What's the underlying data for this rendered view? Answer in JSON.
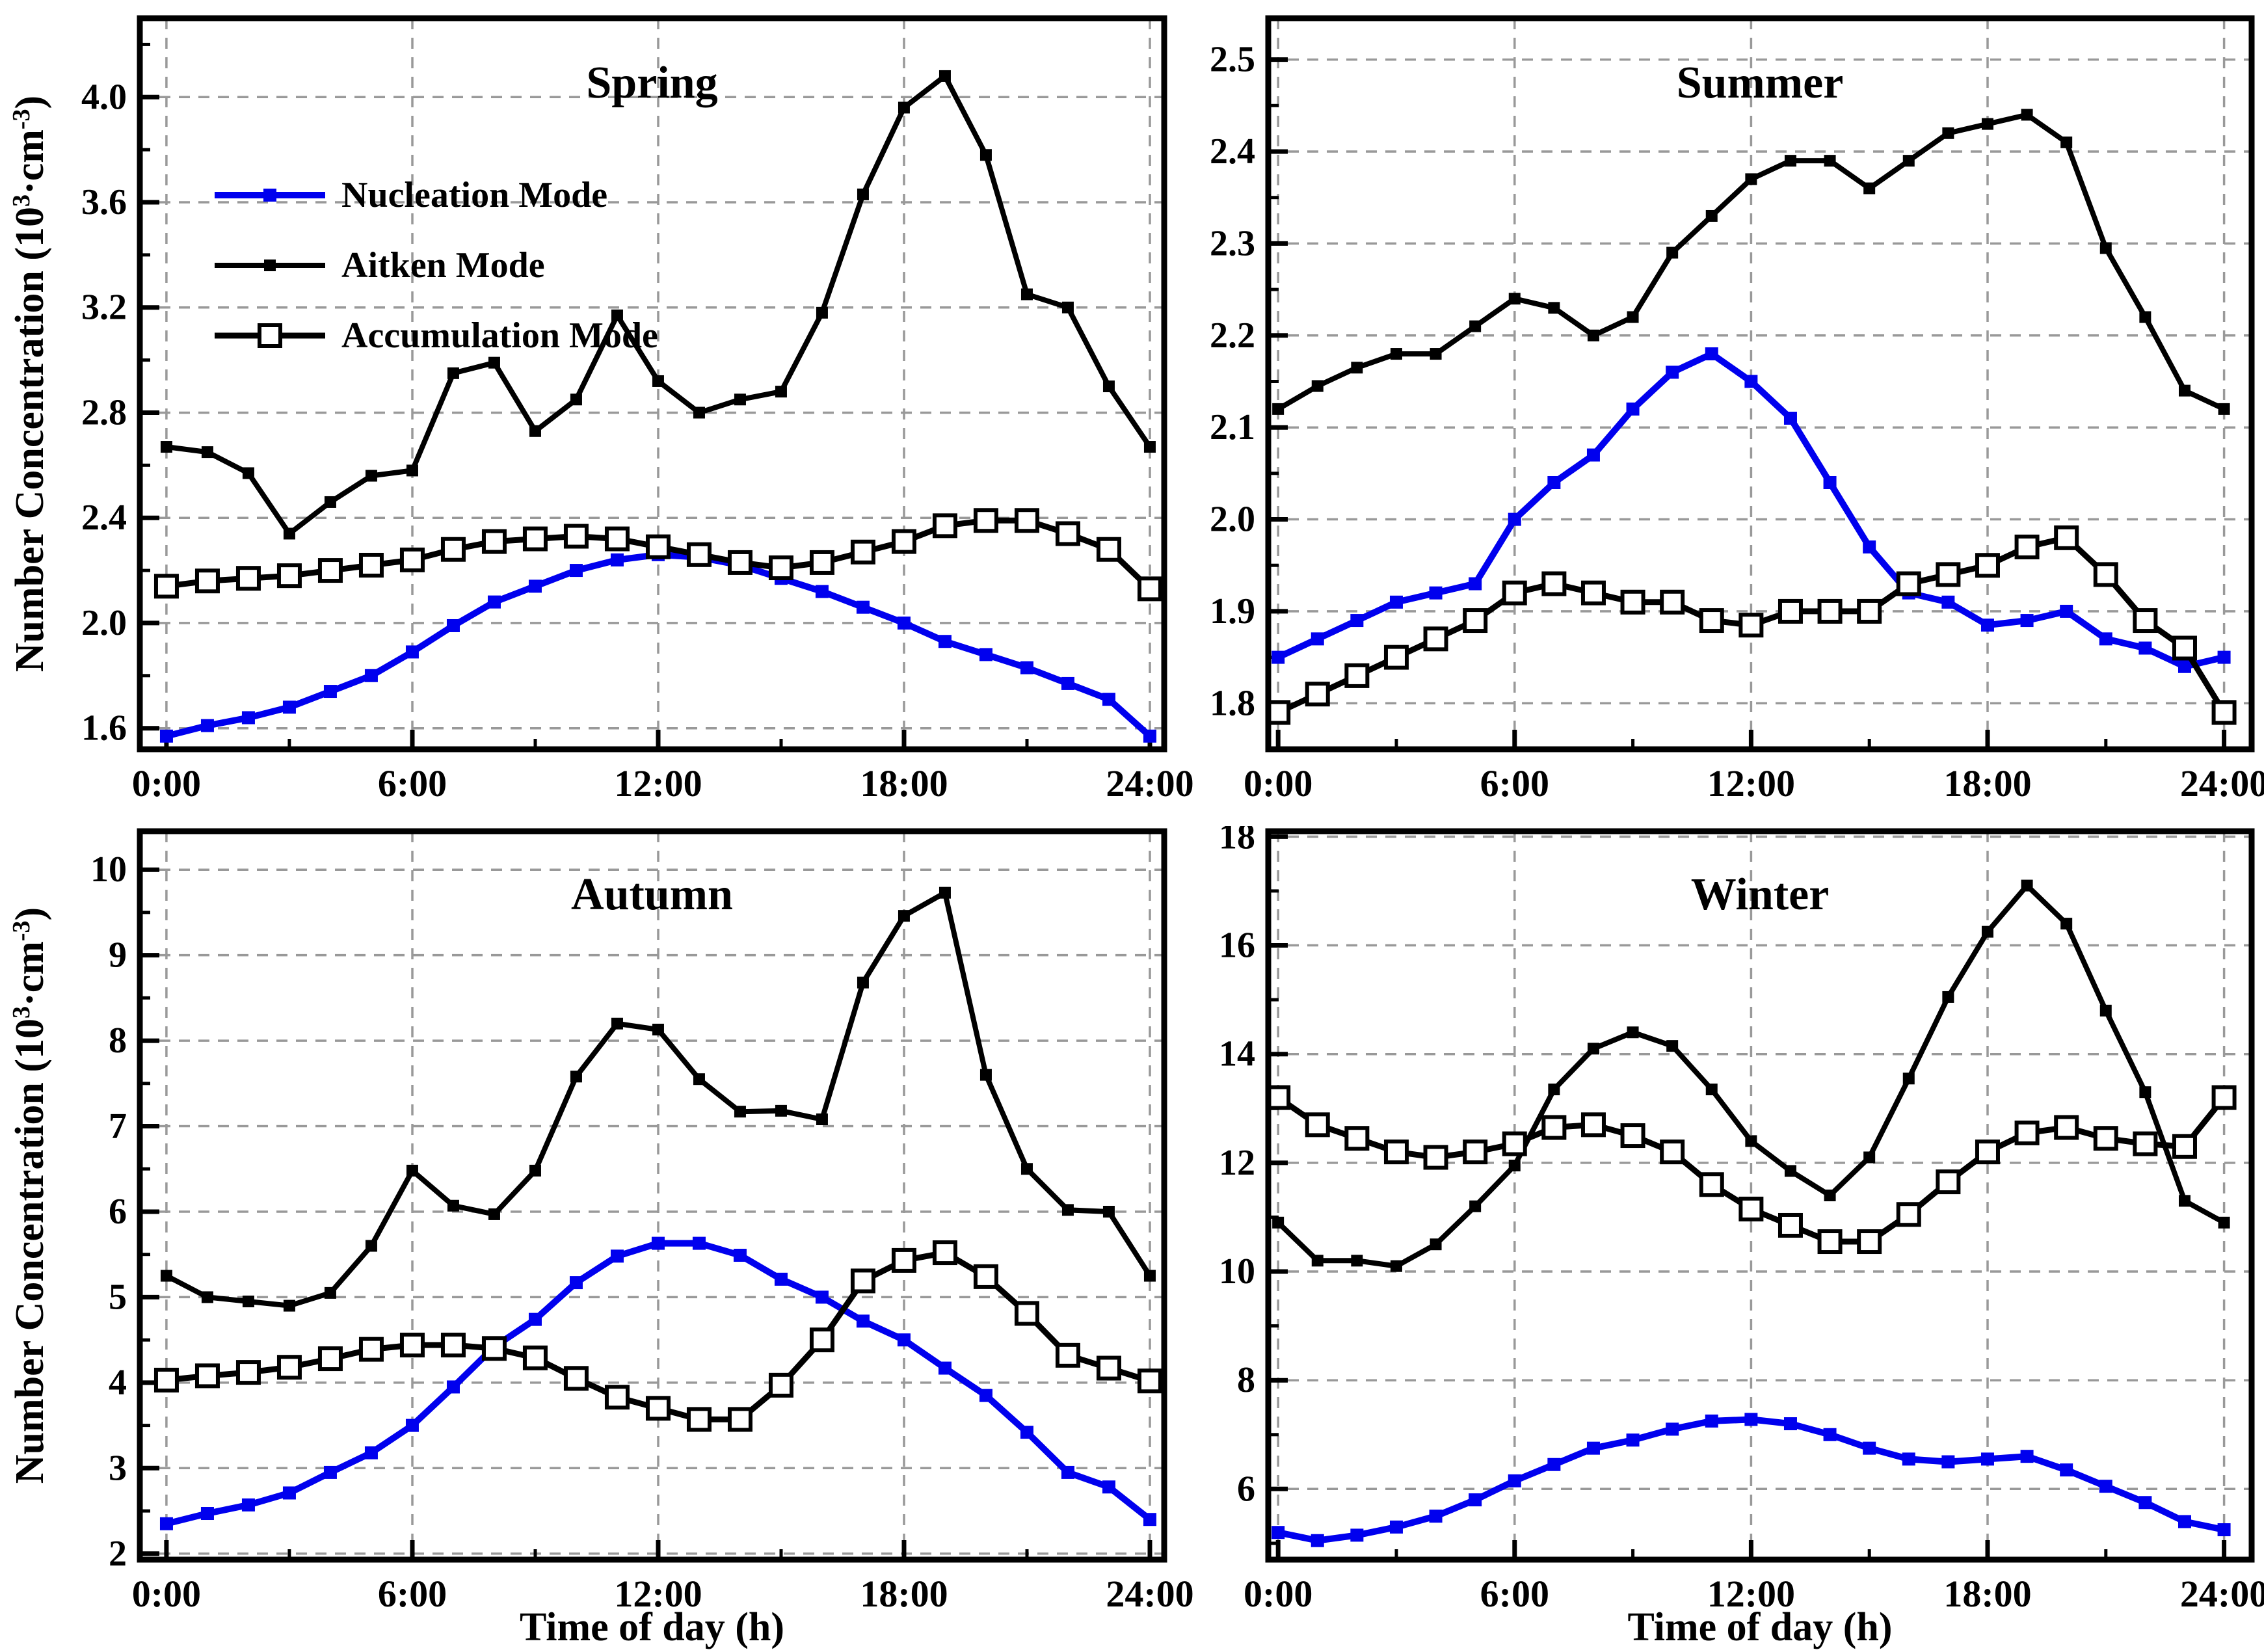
{
  "figure": {
    "y_axis_label": "Number Concentration (10³·cm⁻³)",
    "y_axis_label_parts": [
      {
        "t": "Number Concentration (10",
        "sup": false
      },
      {
        "t": "3",
        "sup": true
      },
      {
        "t": "·cm",
        "sup": false
      },
      {
        "t": "-3",
        "sup": true
      },
      {
        "t": ")",
        "sup": false
      }
    ],
    "x_axis_label": "Time of day (h)",
    "legend": [
      "Nucleation Mode",
      "Aitken Mode",
      "Accumulation Mode"
    ],
    "colors": {
      "nucleation": "#0000EE",
      "black": "#000000",
      "grid": "#999999",
      "background": "#FFFFFF"
    }
  },
  "chart_data": [
    {
      "type": "line",
      "title": "Spring",
      "position": "top-left",
      "x_hours": [
        0,
        1,
        2,
        3,
        4,
        5,
        6,
        7,
        8,
        9,
        10,
        11,
        12,
        13,
        14,
        15,
        16,
        17,
        18,
        19,
        20,
        21,
        22,
        23,
        24
      ],
      "xlim": [
        -0.65,
        24.35
      ],
      "x_ticks": [
        0,
        6,
        12,
        18,
        24
      ],
      "x_tick_labels": [
        "0:00",
        "6:00",
        "12:00",
        "18:00",
        "24:00"
      ],
      "x_minor_step": 3,
      "ylim": [
        1.52,
        4.3
      ],
      "y_ticks": [
        1.6,
        2.0,
        2.4,
        2.8,
        3.2,
        3.6,
        4.0
      ],
      "y_tick_labels": [
        "1.6",
        "2.0",
        "2.4",
        "2.8",
        "3.2",
        "3.6",
        "4.0"
      ],
      "y_minor_step": 0.2,
      "grid": true,
      "legend_visible": true,
      "show_y_axis_label": true,
      "show_x_axis_label": false,
      "series": [
        {
          "name": "Nucleation Mode",
          "color_key": "nucleation",
          "marker": "filled-square",
          "values": [
            1.57,
            1.61,
            1.64,
            1.68,
            1.74,
            1.8,
            1.89,
            1.99,
            2.08,
            2.14,
            2.2,
            2.24,
            2.26,
            2.25,
            2.22,
            2.17,
            2.12,
            2.06,
            2.0,
            1.93,
            1.88,
            1.83,
            1.77,
            1.71,
            1.57
          ]
        },
        {
          "name": "Aitken Mode",
          "color_key": "black",
          "marker": "filled-square",
          "values": [
            2.67,
            2.65,
            2.57,
            2.34,
            2.46,
            2.56,
            2.58,
            2.95,
            2.99,
            2.73,
            2.85,
            3.17,
            2.92,
            2.8,
            2.85,
            2.88,
            3.18,
            3.63,
            3.96,
            4.08,
            3.78,
            3.25,
            3.2,
            2.9,
            2.67
          ]
        },
        {
          "name": "Accumulation Mode",
          "color_key": "black",
          "marker": "open-square",
          "values": [
            2.14,
            2.16,
            2.17,
            2.18,
            2.2,
            2.22,
            2.24,
            2.28,
            2.31,
            2.32,
            2.33,
            2.32,
            2.29,
            2.26,
            2.23,
            2.21,
            2.23,
            2.27,
            2.31,
            2.37,
            2.39,
            2.39,
            2.34,
            2.28,
            2.13
          ]
        }
      ]
    },
    {
      "type": "line",
      "title": "Summer",
      "position": "top-right",
      "x_hours": [
        0,
        1,
        2,
        3,
        4,
        5,
        6,
        7,
        8,
        9,
        10,
        11,
        12,
        13,
        14,
        15,
        16,
        17,
        18,
        19,
        20,
        21,
        22,
        23,
        24
      ],
      "xlim": [
        -0.25,
        24.7
      ],
      "x_ticks": [
        0,
        6,
        12,
        18,
        24
      ],
      "x_tick_labels": [
        "0:00",
        "6:00",
        "12:00",
        "18:00",
        "24:00"
      ],
      "x_minor_step": 3,
      "ylim": [
        1.75,
        2.545
      ],
      "y_ticks": [
        1.8,
        1.9,
        2.0,
        2.1,
        2.2,
        2.3,
        2.4,
        2.5
      ],
      "y_tick_labels": [
        "1.8",
        "1.9",
        "2.0",
        "2.1",
        "2.2",
        "2.3",
        "2.4",
        "2.5"
      ],
      "y_minor_step": 0.05,
      "grid": true,
      "legend_visible": false,
      "show_y_axis_label": false,
      "show_x_axis_label": false,
      "series": [
        {
          "name": "Nucleation Mode",
          "color_key": "nucleation",
          "marker": "filled-square",
          "values": [
            1.85,
            1.87,
            1.89,
            1.91,
            1.92,
            1.93,
            2.0,
            2.04,
            2.07,
            2.12,
            2.16,
            2.18,
            2.15,
            2.11,
            2.04,
            1.97,
            1.92,
            1.91,
            1.885,
            1.89,
            1.9,
            1.87,
            1.86,
            1.84,
            1.85
          ]
        },
        {
          "name": "Aitken Mode",
          "color_key": "black",
          "marker": "filled-square",
          "values": [
            2.12,
            2.145,
            2.165,
            2.18,
            2.18,
            2.21,
            2.24,
            2.23,
            2.2,
            2.22,
            2.29,
            2.33,
            2.37,
            2.39,
            2.39,
            2.36,
            2.39,
            2.42,
            2.43,
            2.44,
            2.41,
            2.295,
            2.22,
            2.14,
            2.12
          ]
        },
        {
          "name": "Accumulation Mode",
          "color_key": "black",
          "marker": "open-square",
          "values": [
            1.79,
            1.81,
            1.83,
            1.85,
            1.87,
            1.89,
            1.92,
            1.93,
            1.92,
            1.91,
            1.91,
            1.89,
            1.885,
            1.9,
            1.9,
            1.9,
            1.93,
            1.94,
            1.95,
            1.97,
            1.98,
            1.94,
            1.89,
            1.86,
            1.79
          ]
        }
      ]
    },
    {
      "type": "line",
      "title": "Autumn",
      "position": "bottom-left",
      "x_hours": [
        0,
        1,
        2,
        3,
        4,
        5,
        6,
        7,
        8,
        9,
        10,
        11,
        12,
        13,
        14,
        15,
        16,
        17,
        18,
        19,
        20,
        21,
        22,
        23,
        24
      ],
      "xlim": [
        -0.65,
        24.35
      ],
      "x_ticks": [
        0,
        6,
        12,
        18,
        24
      ],
      "x_tick_labels": [
        "0:00",
        "6:00",
        "12:00",
        "18:00",
        "24:00"
      ],
      "x_minor_step": 3,
      "ylim": [
        1.93,
        10.45
      ],
      "y_ticks": [
        2,
        3,
        4,
        5,
        6,
        7,
        8,
        9,
        10
      ],
      "y_tick_labels": [
        "2",
        "3",
        "4",
        "5",
        "6",
        "7",
        "8",
        "9",
        "10"
      ],
      "y_minor_step": 0.5,
      "grid": true,
      "legend_visible": false,
      "show_y_axis_label": true,
      "show_x_axis_label": true,
      "series": [
        {
          "name": "Nucleation Mode",
          "color_key": "nucleation",
          "marker": "filled-square",
          "values": [
            2.35,
            2.47,
            2.57,
            2.71,
            2.95,
            3.18,
            3.5,
            3.95,
            4.42,
            4.74,
            5.17,
            5.48,
            5.63,
            5.63,
            5.49,
            5.21,
            5.0,
            4.72,
            4.5,
            4.17,
            3.85,
            3.42,
            2.95,
            2.78,
            2.4
          ]
        },
        {
          "name": "Aitken Mode",
          "color_key": "black",
          "marker": "filled-square",
          "values": [
            5.25,
            5.0,
            4.95,
            4.9,
            5.05,
            5.6,
            6.48,
            6.07,
            5.97,
            6.48,
            7.58,
            8.2,
            8.13,
            7.55,
            7.17,
            7.18,
            7.08,
            8.68,
            9.46,
            9.73,
            7.6,
            6.5,
            6.02,
            6.0,
            5.25
          ]
        },
        {
          "name": "Accumulation Mode",
          "color_key": "black",
          "marker": "open-square",
          "values": [
            4.03,
            4.08,
            4.12,
            4.18,
            4.28,
            4.39,
            4.44,
            4.44,
            4.4,
            4.29,
            4.05,
            3.83,
            3.7,
            3.57,
            3.57,
            3.97,
            4.5,
            5.19,
            5.43,
            5.52,
            5.24,
            4.81,
            4.32,
            4.17,
            4.02
          ]
        }
      ]
    },
    {
      "type": "line",
      "title": "Winter",
      "position": "bottom-right",
      "x_hours": [
        0,
        1,
        2,
        3,
        4,
        5,
        6,
        7,
        8,
        9,
        10,
        11,
        12,
        13,
        14,
        15,
        16,
        17,
        18,
        19,
        20,
        21,
        22,
        23,
        24
      ],
      "xlim": [
        -0.25,
        24.7
      ],
      "x_ticks": [
        0,
        6,
        12,
        18,
        24
      ],
      "x_tick_labels": [
        "0:00",
        "6:00",
        "12:00",
        "18:00",
        "24:00"
      ],
      "x_minor_step": 3,
      "ylim": [
        4.7,
        18.1
      ],
      "y_ticks": [
        6,
        8,
        10,
        12,
        14,
        16,
        18
      ],
      "y_tick_labels": [
        "6",
        "8",
        "10",
        "12",
        "14",
        "16",
        "18"
      ],
      "y_minor_step": 1,
      "grid": true,
      "legend_visible": false,
      "show_y_axis_label": false,
      "show_x_axis_label": true,
      "series": [
        {
          "name": "Nucleation Mode",
          "color_key": "nucleation",
          "marker": "filled-square",
          "values": [
            5.2,
            5.05,
            5.15,
            5.3,
            5.5,
            5.8,
            6.15,
            6.45,
            6.75,
            6.9,
            7.1,
            7.25,
            7.28,
            7.2,
            7.0,
            6.75,
            6.55,
            6.5,
            6.55,
            6.6,
            6.35,
            6.05,
            5.75,
            5.4,
            5.25
          ]
        },
        {
          "name": "Aitken Mode",
          "color_key": "black",
          "marker": "filled-square",
          "values": [
            10.9,
            10.2,
            10.2,
            10.1,
            10.5,
            11.2,
            11.95,
            13.35,
            14.1,
            14.4,
            14.15,
            13.35,
            12.4,
            11.85,
            11.4,
            12.1,
            13.55,
            15.05,
            16.25,
            17.1,
            16.4,
            14.8,
            13.3,
            11.3,
            10.9
          ]
        },
        {
          "name": "Accumulation Mode",
          "color_key": "black",
          "marker": "open-square",
          "values": [
            13.2,
            12.7,
            12.45,
            12.2,
            12.1,
            12.2,
            12.35,
            12.65,
            12.7,
            12.5,
            12.2,
            11.6,
            11.15,
            10.85,
            10.55,
            10.55,
            11.05,
            11.65,
            12.2,
            12.55,
            12.65,
            12.45,
            12.35,
            12.3,
            13.2
          ]
        }
      ]
    }
  ]
}
